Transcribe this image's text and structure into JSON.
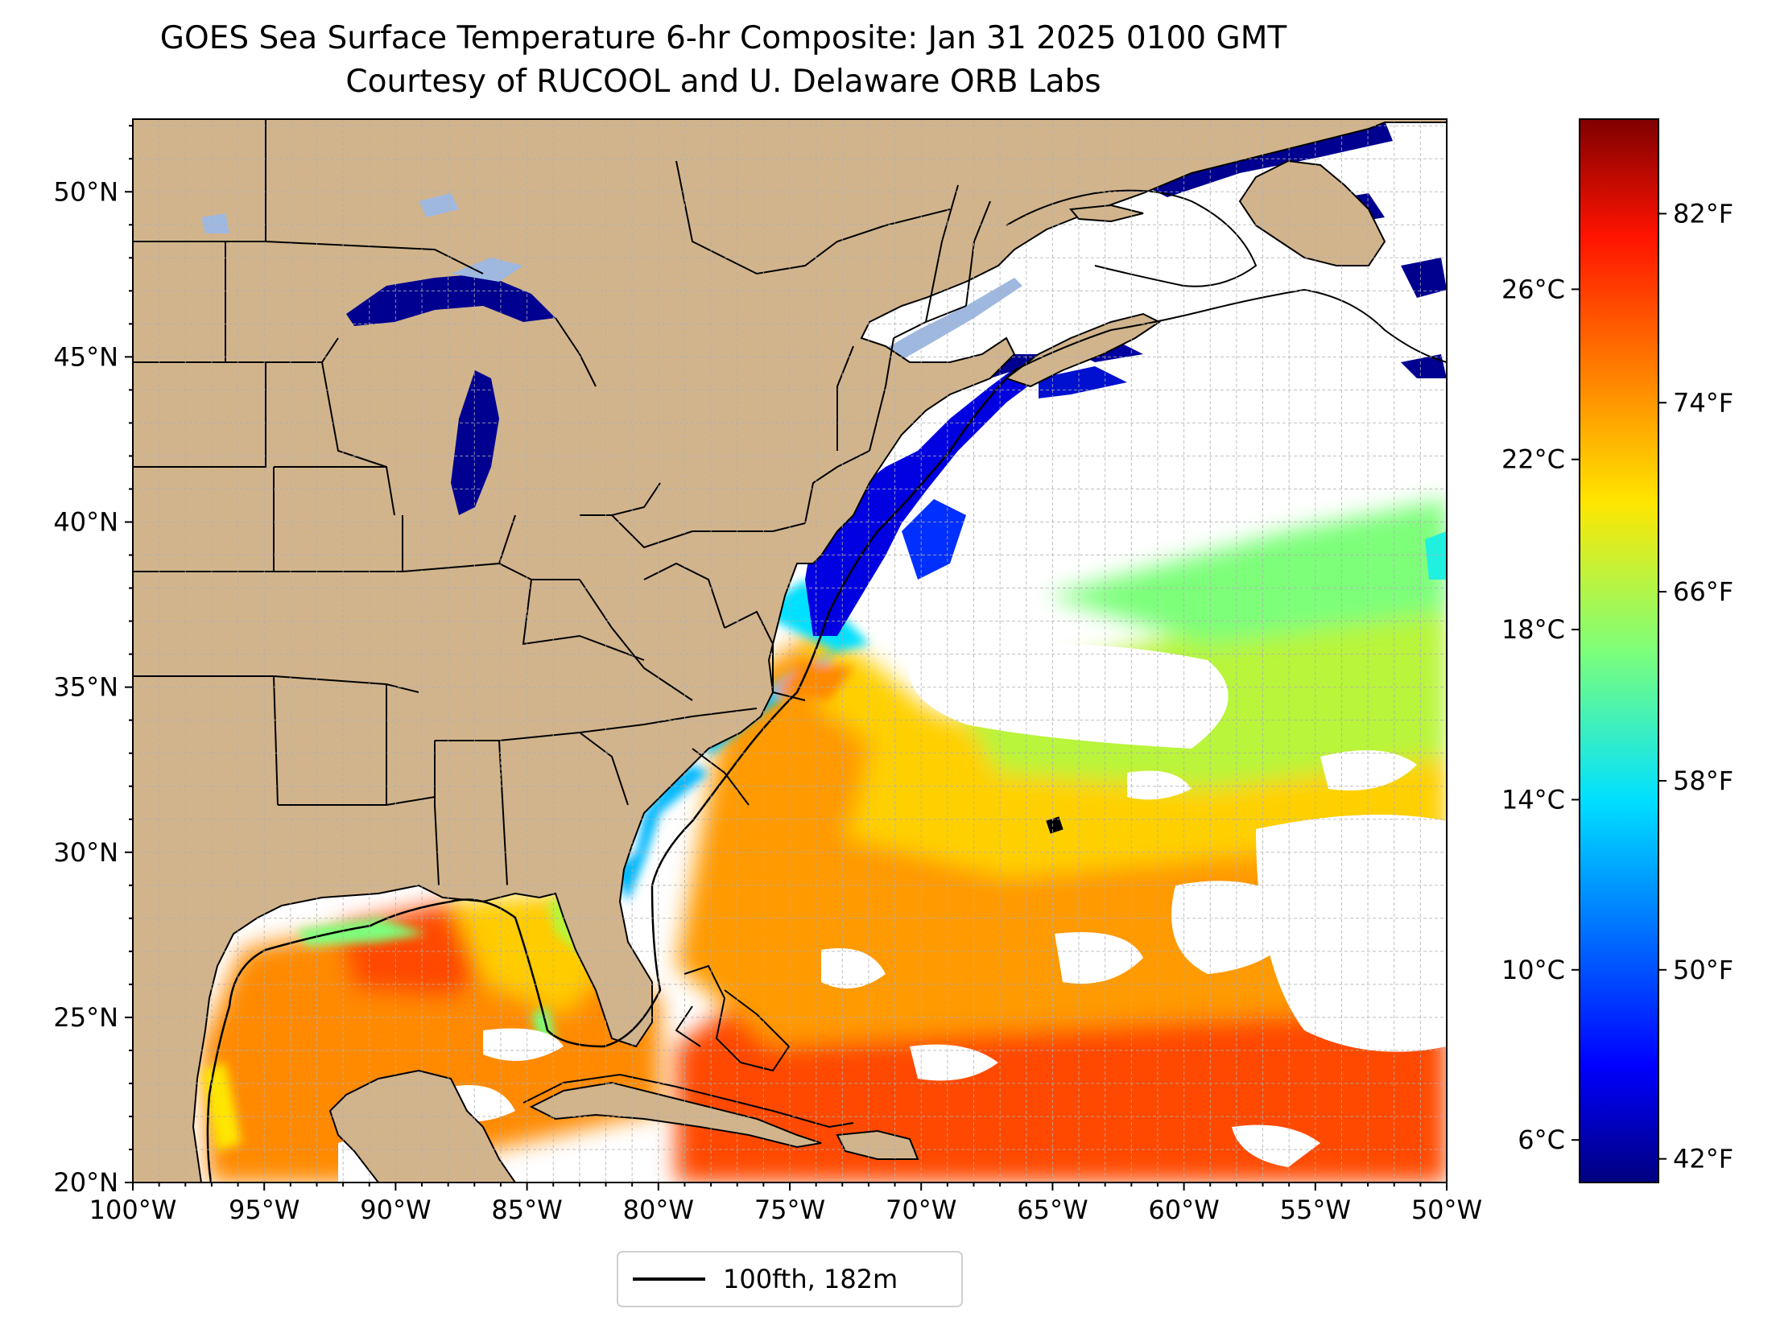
{
  "title": "GOES Sea Surface Temperature 6-hr Composite: Jan 31 2025 0100 GMT",
  "subtitle": "Courtesy of RUCOOL and U. Delaware ORB Labs",
  "map": {
    "extent": {
      "lon_min": -100,
      "lon_max": -50,
      "lat_min": 20,
      "lat_max": 52.2
    },
    "lon_ticks": [
      {
        "value": -100,
        "label": "100°W"
      },
      {
        "value": -95,
        "label": "95°W"
      },
      {
        "value": -90,
        "label": "90°W"
      },
      {
        "value": -85,
        "label": "85°W"
      },
      {
        "value": -80,
        "label": "80°W"
      },
      {
        "value": -75,
        "label": "75°W"
      },
      {
        "value": -70,
        "label": "70°W"
      },
      {
        "value": -65,
        "label": "65°W"
      },
      {
        "value": -60,
        "label": "60°W"
      },
      {
        "value": -55,
        "label": "55°W"
      },
      {
        "value": -50,
        "label": "50°W"
      }
    ],
    "lat_ticks": [
      {
        "value": 20,
        "label": "20°N"
      },
      {
        "value": 25,
        "label": "25°N"
      },
      {
        "value": 30,
        "label": "30°N"
      },
      {
        "value": 35,
        "label": "35°N"
      },
      {
        "value": 40,
        "label": "40°N"
      },
      {
        "value": 45,
        "label": "45°N"
      },
      {
        "value": 50,
        "label": "50°N"
      }
    ],
    "grid": true,
    "colors": {
      "land": "#d2b48c",
      "lakes": "#9fb8e0",
      "no_data": "#ffffff",
      "border": "#000000",
      "gridline": "#b0b0b0"
    }
  },
  "colorbar": {
    "colormap": "jet",
    "range_c": [
      5,
      30
    ],
    "celsius_ticks": [
      {
        "value": 6,
        "label": "6°C"
      },
      {
        "value": 10,
        "label": "10°C"
      },
      {
        "value": 14,
        "label": "14°C"
      },
      {
        "value": 18,
        "label": "18°C"
      },
      {
        "value": 22,
        "label": "22°C"
      },
      {
        "value": 26,
        "label": "26°C"
      }
    ],
    "fahrenheit_ticks": [
      {
        "value": 42,
        "label": "42°F"
      },
      {
        "value": 50,
        "label": "50°F"
      },
      {
        "value": 58,
        "label": "58°F"
      },
      {
        "value": 66,
        "label": "66°F"
      },
      {
        "value": 74,
        "label": "74°F"
      },
      {
        "value": 82,
        "label": "82°F"
      }
    ]
  },
  "legend": {
    "label": "100fth, 182m",
    "line_color": "#000000"
  }
}
